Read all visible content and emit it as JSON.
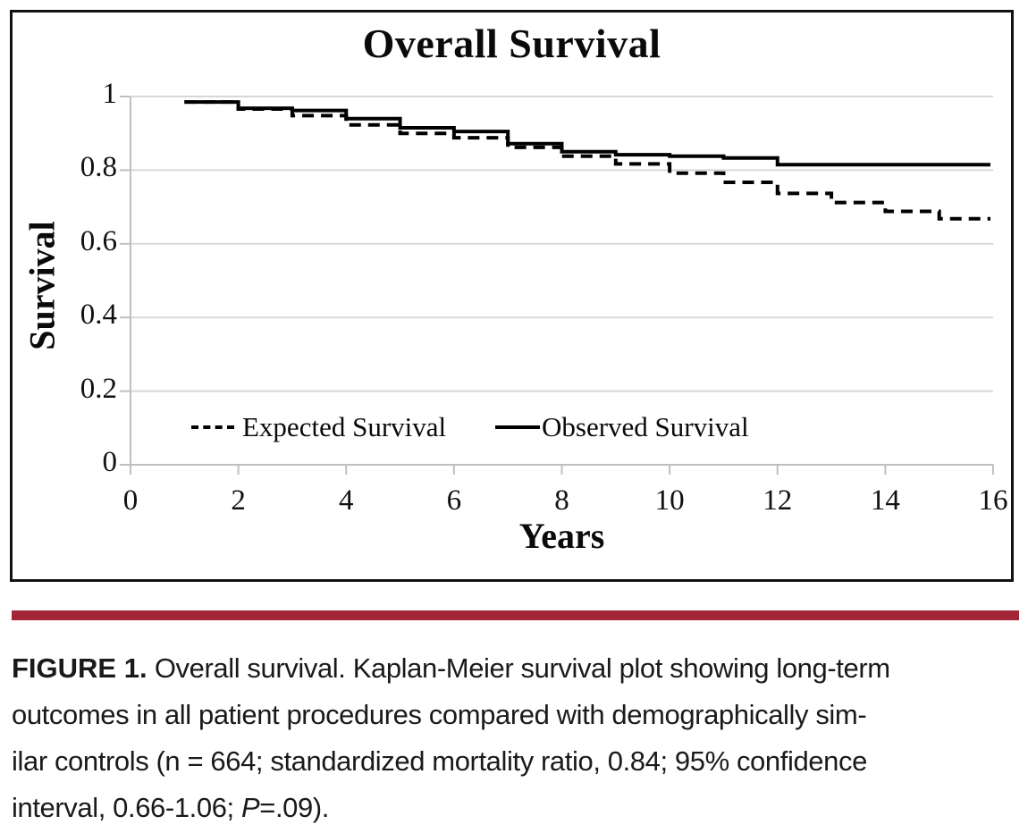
{
  "colors": {
    "curve": "#000000",
    "grid": "#d8d8d8",
    "axis": "#bfbfbf",
    "rule_red": "#A32638",
    "border": "#121212"
  },
  "chart_data": {
    "type": "line",
    "subtype": "kaplan-meier-step",
    "title": "Overall Survival",
    "xlabel": "Years",
    "ylabel": "Survival",
    "xlim": [
      0,
      16
    ],
    "ylim": [
      0,
      1
    ],
    "x_ticks": [
      0,
      2,
      4,
      6,
      8,
      10,
      12,
      14,
      16
    ],
    "y_ticks": [
      1,
      0.8,
      0.6,
      0.4,
      0.2,
      0
    ],
    "grid": "horizontal-gridlines",
    "legend_position": "inside-bottom-left",
    "series": [
      {
        "name": "Observed Survival",
        "style": "solid",
        "color": "#000000",
        "points": [
          [
            1,
            0.985
          ],
          [
            2,
            0.968
          ],
          [
            3,
            0.962
          ],
          [
            4,
            0.94
          ],
          [
            5,
            0.915
          ],
          [
            6,
            0.905
          ],
          [
            7,
            0.872
          ],
          [
            8,
            0.85
          ],
          [
            9,
            0.842
          ],
          [
            10,
            0.838
          ],
          [
            11,
            0.833
          ],
          [
            12,
            0.815
          ],
          [
            15.95,
            0.815
          ]
        ]
      },
      {
        "name": "Expected Survival",
        "style": "dashed",
        "color": "#000000",
        "points": [
          [
            1,
            0.985
          ],
          [
            2,
            0.966
          ],
          [
            3,
            0.948
          ],
          [
            4,
            0.923
          ],
          [
            5,
            0.9
          ],
          [
            6,
            0.888
          ],
          [
            7,
            0.862
          ],
          [
            8,
            0.838
          ],
          [
            9,
            0.817
          ],
          [
            10,
            0.792
          ],
          [
            11,
            0.767
          ],
          [
            12,
            0.737
          ],
          [
            13,
            0.712
          ],
          [
            14,
            0.688
          ],
          [
            15,
            0.668
          ],
          [
            15.95,
            0.668
          ]
        ]
      }
    ]
  },
  "legend": {
    "expected_label": "Expected Survival",
    "observed_label": "Observed Survival"
  },
  "caption": {
    "label": "FIGURE 1.",
    "line1": "Overall survival. Kaplan-Meier survival plot showing long-term",
    "line2": "outcomes in all patient procedures compared with demographically sim-",
    "line3": "ilar controls (n = 664; standardized mortality ratio, 0.84; 95% confidence",
    "line4_before_p": "interval, 0.66-1.06; ",
    "p_symbol": "P",
    "line4_after_p": "=.09)."
  }
}
